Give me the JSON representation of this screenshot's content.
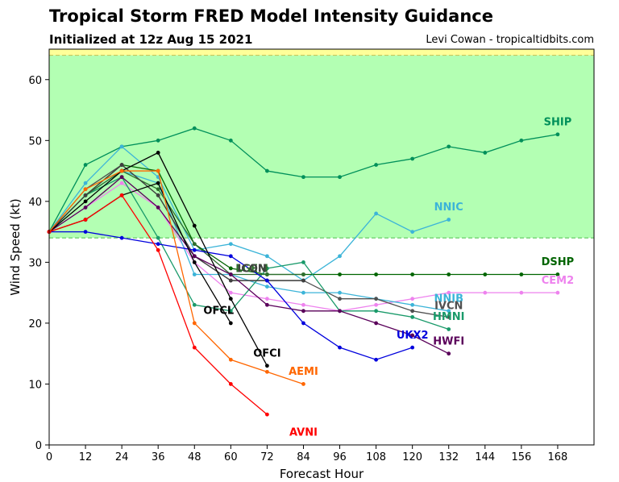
{
  "header": {
    "title": "Tropical Storm FRED Model Intensity Guidance",
    "subtitle": "Initialized at 12z Aug 15 2021",
    "credit": "Levi Cowan - tropicaltidbits.com"
  },
  "chart_data": {
    "type": "line",
    "title": "Tropical Storm FRED Model Intensity Guidance",
    "subtitle": "Initialized at 12z Aug 15 2021",
    "xlabel": "Forecast Hour",
    "ylabel": "Wind Speed (kt)",
    "xlim": [
      0,
      180
    ],
    "ylim": [
      0,
      65
    ],
    "xticks": [
      0,
      12,
      24,
      36,
      48,
      60,
      72,
      84,
      96,
      108,
      120,
      132,
      144,
      156,
      168
    ],
    "yticks": [
      0,
      10,
      20,
      30,
      40,
      50,
      60
    ],
    "bands": [
      {
        "from": 34,
        "to": 64,
        "color": "#b3ffb3",
        "border": "#5cc85c"
      },
      {
        "from": 64,
        "to": 65,
        "color": "#ffff99",
        "border": "#c8c85c"
      }
    ],
    "grid": false,
    "series": [
      {
        "name": "SHIP",
        "color": "#00905a",
        "x": [
          0,
          12,
          24,
          36,
          48,
          60,
          72,
          84,
          96,
          108,
          120,
          132,
          144,
          156,
          168
        ],
        "y": [
          35,
          46,
          49,
          50,
          52,
          50,
          45,
          44,
          44,
          46,
          47,
          49,
          48,
          50,
          51
        ],
        "label_x": 168,
        "label_y": 52.5
      },
      {
        "name": "NNIC",
        "color": "#3cb4d8",
        "x": [
          0,
          12,
          24,
          36,
          48,
          60,
          72,
          84,
          96,
          108,
          120,
          132
        ],
        "y": [
          35,
          43,
          49,
          44,
          32,
          33,
          31,
          27,
          31,
          38,
          35,
          37
        ],
        "label_x": 132,
        "label_y": 38.5
      },
      {
        "name": "DSHP",
        "color": "#006400",
        "x": [
          0,
          12,
          24,
          36,
          48,
          60,
          72,
          84,
          96,
          108,
          120,
          132,
          144,
          156,
          168
        ],
        "y": [
          35,
          41,
          46,
          45,
          33,
          29,
          28,
          28,
          28,
          28,
          28,
          28,
          28,
          28,
          28
        ],
        "label_x": 168,
        "label_y": 29.5
      },
      {
        "name": "CEM2",
        "color": "#ee82ee",
        "x": [
          0,
          12,
          24,
          36,
          48,
          60,
          72,
          84,
          96,
          108,
          120,
          132,
          144,
          156,
          168
        ],
        "y": [
          35,
          39,
          43,
          39,
          30,
          25,
          24,
          23,
          22,
          23,
          24,
          25,
          25,
          25,
          25
        ],
        "label_x": 168,
        "label_y": 26.5
      },
      {
        "name": "NNIB",
        "color": "#3cb4d8",
        "x": [
          0,
          12,
          24,
          36,
          48,
          60,
          72,
          84,
          96,
          108,
          120,
          132
        ],
        "y": [
          35,
          41,
          45,
          43,
          28,
          28,
          26,
          25,
          25,
          24,
          23,
          22
        ],
        "label_x": 132,
        "label_y": 23.5
      },
      {
        "name": "IVCN",
        "color": "#505050",
        "x": [
          0,
          12,
          24,
          36,
          48,
          60,
          72,
          84,
          96,
          108,
          120,
          132
        ],
        "y": [
          35,
          42,
          46,
          41,
          31,
          27,
          27,
          27,
          24,
          24,
          22,
          21
        ],
        "label_x": 132,
        "label_y": 22.3
      },
      {
        "name": "HMNI",
        "color": "#1a9a6a",
        "x": [
          0,
          12,
          24,
          36,
          48,
          60,
          72,
          84,
          96,
          108,
          120,
          132
        ],
        "y": [
          35,
          41,
          44,
          34,
          23,
          22,
          29,
          30,
          22,
          22,
          21,
          19
        ],
        "label_x": 132,
        "label_y": 20.5
      },
      {
        "name": "LGEM",
        "color": "#2e6e2e",
        "x": [
          0,
          12,
          24,
          36,
          48,
          60,
          72,
          84
        ],
        "y": [
          35,
          41,
          45,
          42,
          33,
          28,
          28,
          28
        ],
        "label_x": 67,
        "label_y": 28.4
      },
      {
        "name": "ICON",
        "color": "#404040",
        "x": [
          0,
          12,
          24,
          36,
          48,
          60,
          72,
          84
        ],
        "y": [
          35,
          41,
          46,
          41,
          31,
          27,
          27,
          27
        ],
        "label_x": 67,
        "label_y": 28.4
      },
      {
        "name": "UKX2",
        "color": "#0000dd",
        "x": [
          0,
          12,
          24,
          36,
          48,
          60,
          72,
          84,
          96,
          108,
          120
        ],
        "y": [
          35,
          35,
          34,
          33,
          32,
          31,
          27,
          20,
          16,
          14,
          16
        ],
        "label_x": 120,
        "label_y": 17.5
      },
      {
        "name": "HWFI",
        "color": "#5a005a",
        "x": [
          0,
          12,
          24,
          36,
          48,
          60,
          72,
          84,
          96,
          108,
          120,
          132
        ],
        "y": [
          35,
          39,
          44,
          39,
          31,
          28,
          23,
          22,
          22,
          20,
          18,
          15
        ],
        "label_x": 132,
        "label_y": 16.5
      },
      {
        "name": "OFCL",
        "color": "#000000",
        "x": [
          0,
          12,
          24,
          36,
          48,
          60
        ],
        "y": [
          35,
          37,
          41,
          43,
          30,
          20
        ],
        "label_x": 56,
        "label_y": 21.5
      },
      {
        "name": "OFCI",
        "color": "#000000",
        "x": [
          0,
          12,
          24,
          36,
          48,
          60,
          72
        ],
        "y": [
          35,
          40,
          45,
          48,
          36,
          24,
          13
        ],
        "label_x": 72,
        "label_y": 14.5
      },
      {
        "name": "AEMI",
        "color": "#ff6600",
        "x": [
          0,
          12,
          24,
          36,
          48,
          60,
          72,
          84
        ],
        "y": [
          35,
          42,
          45,
          45,
          20,
          14,
          12,
          10
        ],
        "label_x": 84,
        "label_y": 11.5
      },
      {
        "name": "AVNI",
        "color": "#ff0000",
        "x": [
          0,
          12,
          24,
          36,
          48,
          60,
          72
        ],
        "y": [
          35,
          37,
          41,
          32,
          16,
          10,
          5
        ],
        "label_x": 84,
        "label_y": 1.5
      }
    ]
  }
}
